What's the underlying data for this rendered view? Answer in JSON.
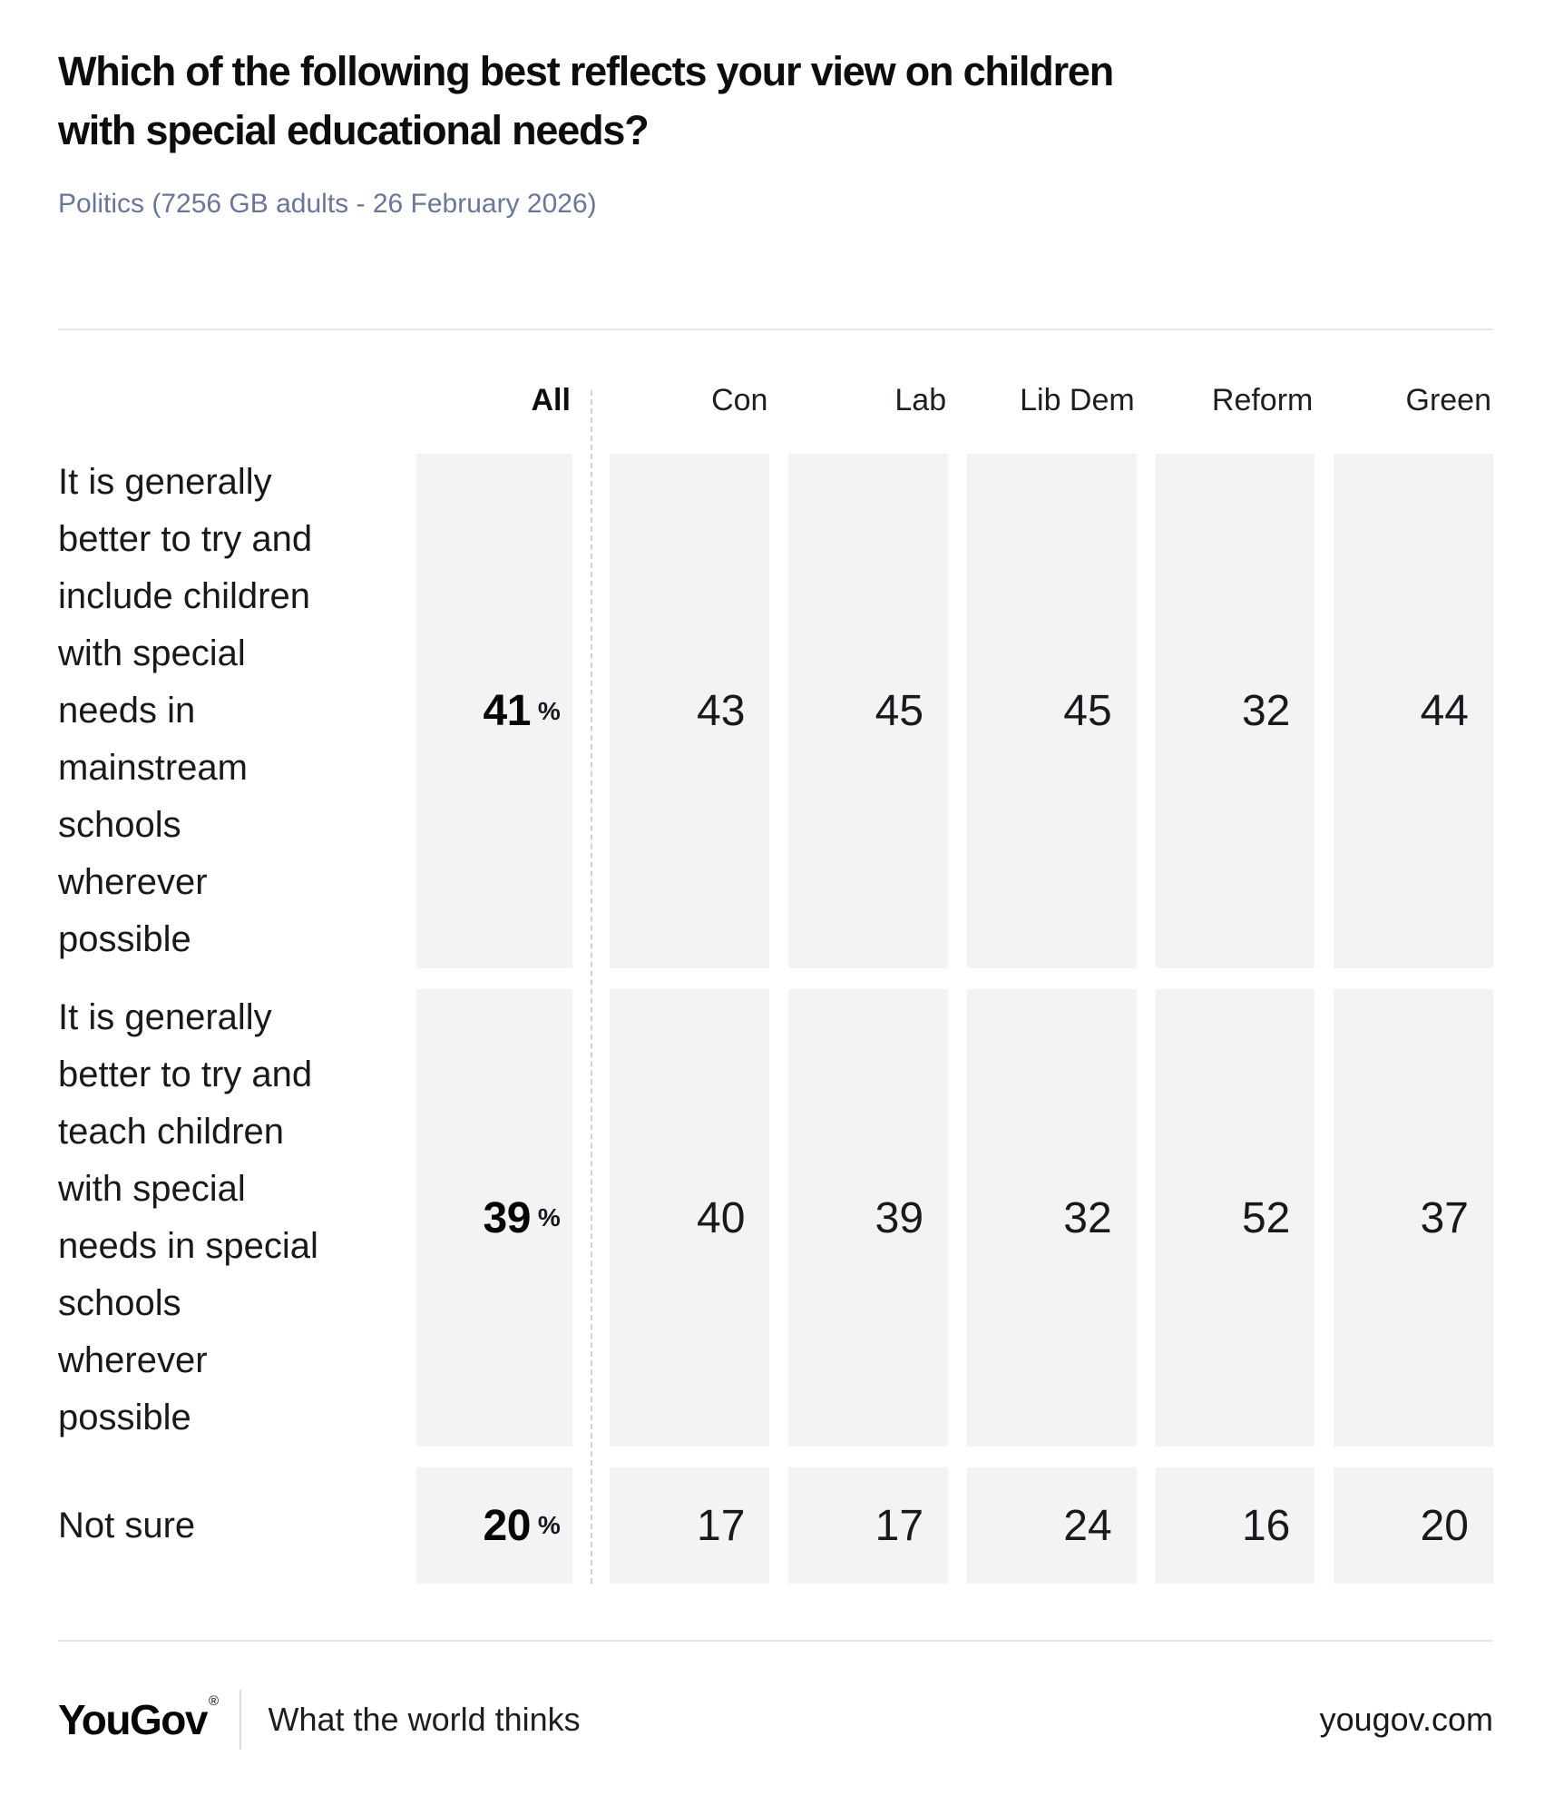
{
  "title": "Which of the following best reflects your view on children\nwith special educational needs?",
  "subtitle": "Politics (7256 GB adults - 26 February 2026)",
  "table": {
    "percent_label": "%",
    "group_headers": [
      "All",
      "Con",
      "Lab",
      "Lib Dem",
      "Reform",
      "Green"
    ],
    "rows": [
      {
        "label": "It is generally\nbetter to try and\ninclude children\nwith special\nneeds in\nmainstream\nschools\nwherever\npossible",
        "all": "41",
        "values": [
          "43",
          "45",
          "45",
          "32",
          "44"
        ]
      },
      {
        "label": "It is generally\nbetter to try and\nteach children\nwith special\nneeds in special\nschools\nwherever\npossible",
        "all": "39",
        "values": [
          "40",
          "39",
          "32",
          "52",
          "37"
        ]
      },
      {
        "label": "Not sure",
        "all": "20",
        "values": [
          "17",
          "17",
          "24",
          "16",
          "20"
        ]
      }
    ]
  },
  "footer": {
    "logo": "YouGov",
    "registered_mark": "®",
    "tagline": "What the world thinks",
    "website": "yougov.com"
  },
  "colors": {
    "cell_background": "#f2f3f5",
    "subtitle_text": "#68769c",
    "rule": "#e4e6ea",
    "dashed_separator": "#ccd2da",
    "text": "#15181d"
  },
  "chart_data": {
    "type": "table",
    "title": "Which of the following best reflects your view on children with special educational needs?",
    "subtitle": "Politics (7256 GB adults - 26 February 2026)",
    "units": "percent",
    "columns": [
      "All",
      "Con",
      "Lab",
      "Lib Dem",
      "Reform",
      "Green"
    ],
    "rows": [
      {
        "label": "It is generally better to try and include children with special needs in mainstream schools wherever possible",
        "values": [
          41,
          43,
          45,
          45,
          32,
          44
        ]
      },
      {
        "label": "It is generally better to try and teach children with special needs in special schools wherever possible",
        "values": [
          39,
          40,
          39,
          32,
          52,
          37
        ]
      },
      {
        "label": "Not sure",
        "values": [
          20,
          17,
          17,
          24,
          16,
          20
        ]
      }
    ]
  }
}
